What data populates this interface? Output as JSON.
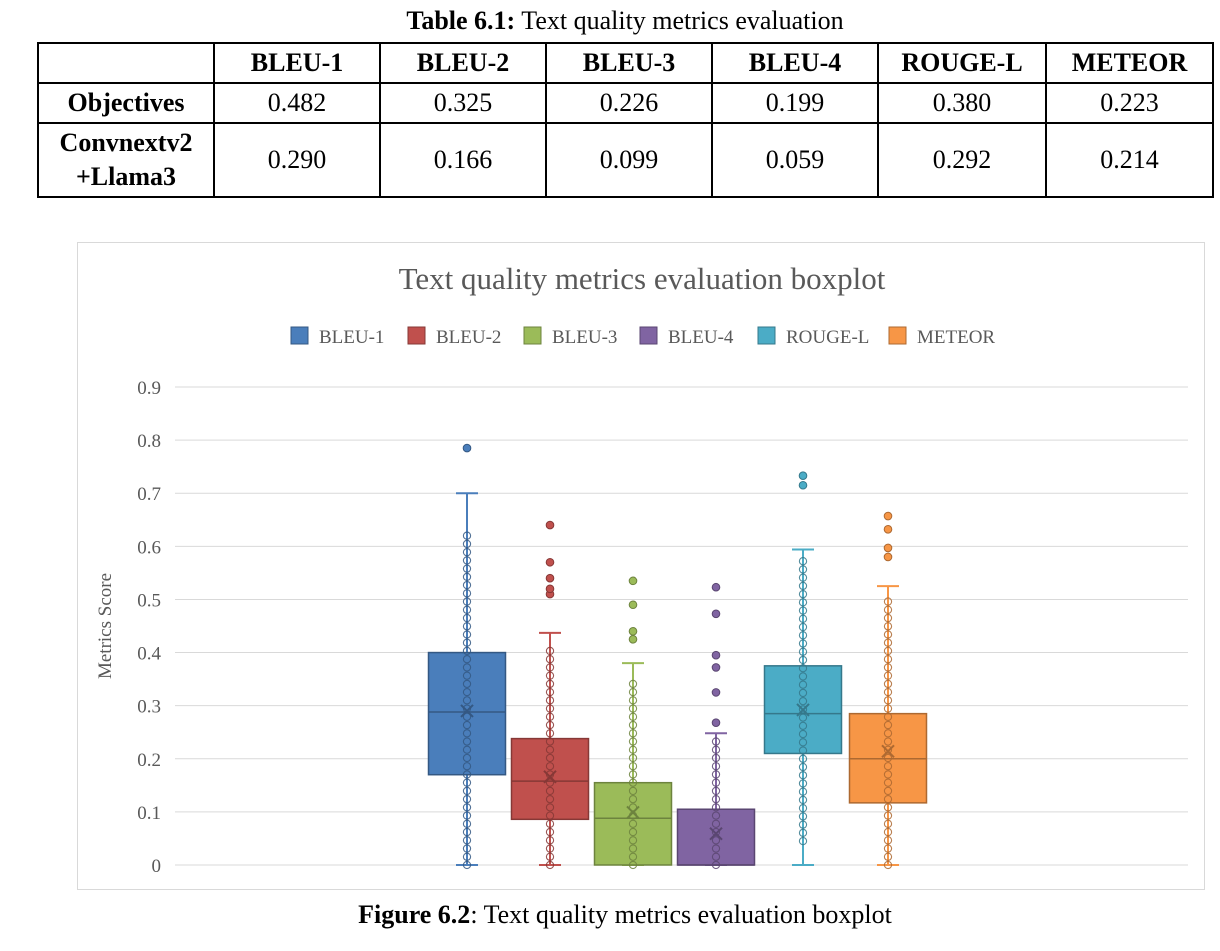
{
  "table": {
    "caption_bold": "Table 6.1:",
    "caption_text": " Text quality metrics evaluation",
    "headers": [
      "",
      "BLEU-1",
      "BLEU-2",
      "BLEU-3",
      "BLEU-4",
      "ROUGE-L",
      "METEOR"
    ],
    "rows": [
      {
        "label_line1": "Objectives",
        "label_line2": "",
        "values": [
          "0.482",
          "0.325",
          "0.226",
          "0.199",
          "0.380",
          "0.223"
        ]
      },
      {
        "label_line1": "Convnextv2",
        "label_line2": "+Llama3",
        "values": [
          "0.290",
          "0.166",
          "0.099",
          "0.059",
          "0.292",
          "0.214"
        ]
      }
    ]
  },
  "figure": {
    "caption_bold": "Figure 6.2",
    "caption_text": ": Text quality metrics evaluation boxplot"
  },
  "chart_data": {
    "type": "boxplot",
    "title": "Text quality metrics evaluation boxplot",
    "xlabel": "",
    "ylabel": "Metrics Score",
    "ylim": [
      0,
      0.9
    ],
    "yticks": [
      "0",
      "0.1",
      "0.2",
      "0.3",
      "0.4",
      "0.5",
      "0.6",
      "0.7",
      "0.8",
      "0.9"
    ],
    "grid": true,
    "legend_position": "top",
    "series": [
      {
        "name": "BLEU-1",
        "color": "#4a7ebb",
        "min": 0,
        "q1": 0.17,
        "median": 0.288,
        "q3": 0.4,
        "max": 0.7,
        "mean": 0.29,
        "outliers": [
          0.785
        ],
        "points_range": [
          0,
          0.625
        ],
        "point_step": 0.0155
      },
      {
        "name": "BLEU-2",
        "color": "#c0504d",
        "min": 0,
        "q1": 0.086,
        "median": 0.158,
        "q3": 0.238,
        "max": 0.437,
        "mean": 0.166,
        "outliers": [
          0.51,
          0.52,
          0.54,
          0.57,
          0.64
        ],
        "points_range": [
          0,
          0.415
        ],
        "point_step": 0.0155
      },
      {
        "name": "BLEU-3",
        "color": "#9bbb59",
        "min": 0,
        "q1": 0,
        "median": 0.088,
        "q3": 0.155,
        "max": 0.38,
        "mean": 0.099,
        "outliers": [
          0.425,
          0.44,
          0.49,
          0.535
        ],
        "points_range": [
          0,
          0.35
        ],
        "point_step": 0.0155
      },
      {
        "name": "BLEU-4",
        "color": "#8064a2",
        "min": 0,
        "q1": 0,
        "median": 0,
        "q3": 0.105,
        "max": 0.248,
        "mean": 0.059,
        "outliers": [
          0.268,
          0.325,
          0.372,
          0.395,
          0.473,
          0.523
        ],
        "points_range": [
          0,
          0.235
        ],
        "point_step": 0.0155
      },
      {
        "name": "ROUGE-L",
        "color": "#4bacc6",
        "min": 0,
        "q1": 0.21,
        "median": 0.285,
        "q3": 0.375,
        "max": 0.594,
        "mean": 0.292,
        "outliers": [
          0.715,
          0.733
        ],
        "points_range": [
          0.045,
          0.585
        ],
        "point_step": 0.0155
      },
      {
        "name": "METEOR",
        "color": "#f79646",
        "min": 0,
        "q1": 0.117,
        "median": 0.2,
        "q3": 0.285,
        "max": 0.525,
        "mean": 0.214,
        "outliers": [
          0.58,
          0.597,
          0.632,
          0.657
        ],
        "points_range": [
          0,
          0.51
        ],
        "point_step": 0.0155
      }
    ]
  }
}
